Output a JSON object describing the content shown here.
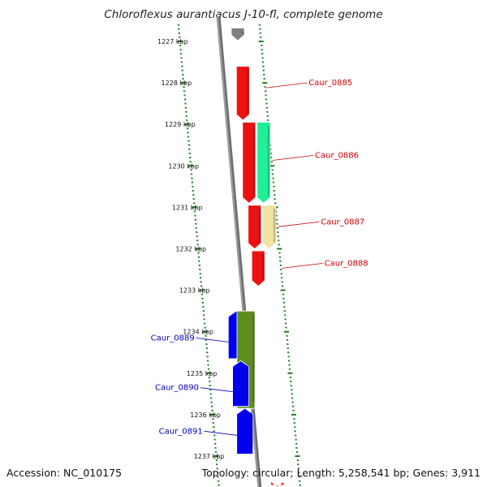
{
  "title": "Chloroflexus aurantiacus J-10-fl, complete genome",
  "footer": {
    "accession": "Accession: NC_010175",
    "topology": "Topology: circular; Length: 5,258,541 bp; Genes: 3,911"
  },
  "colors": {
    "forward_label": "#cc0000",
    "reverse_label": "#0000bb",
    "backbone": "#808080",
    "ticks": "#1e7a1e"
  },
  "scale": {
    "unit": "kbp",
    "ticks": [
      {
        "kbp": 1227,
        "label": "1227 kbp"
      },
      {
        "kbp": 1228,
        "label": "1228 kbp"
      },
      {
        "kbp": 1229,
        "label": "1229 kbp"
      },
      {
        "kbp": 1230,
        "label": "1230 kbp"
      },
      {
        "kbp": 1231,
        "label": "1231 kbp"
      },
      {
        "kbp": 1232,
        "label": "1232 kbp"
      },
      {
        "kbp": 1233,
        "label": "1233 kbp"
      },
      {
        "kbp": 1234,
        "label": "1234 kbp"
      },
      {
        "kbp": 1235,
        "label": "1235 kbp"
      },
      {
        "kbp": 1236,
        "label": "1236 kbp"
      },
      {
        "kbp": 1237,
        "label": "1237 kbp"
      }
    ]
  },
  "genes": [
    {
      "name": "",
      "strand": "+",
      "start_kbp": 1226.68,
      "end_kbp": 1226.98,
      "color": "#ee1111"
    },
    {
      "name": "",
      "strand": "+",
      "start_kbp": 1226.68,
      "end_kbp": 1226.98,
      "color": "#808080"
    },
    {
      "name": "Caur_0885",
      "strand": "+",
      "start_kbp": 1227.6,
      "end_kbp": 1228.9,
      "color": "#ee1111"
    },
    {
      "name": "Caur_0886",
      "strand": "+",
      "start_kbp": 1228.95,
      "end_kbp": 1230.9,
      "color": "#ee1111"
    },
    {
      "name": "Caur_0886",
      "strand": "+",
      "start_kbp": 1228.95,
      "end_kbp": 1230.9,
      "color": "#22ee99"
    },
    {
      "name": "Caur_0887",
      "strand": "+",
      "start_kbp": 1230.95,
      "end_kbp": 1232.0,
      "color": "#ee1111"
    },
    {
      "name": "Caur_0887",
      "strand": "+",
      "start_kbp": 1230.95,
      "end_kbp": 1232.0,
      "color": "#f0e3a0"
    },
    {
      "name": "Caur_0888",
      "strand": "+",
      "start_kbp": 1232.05,
      "end_kbp": 1232.9,
      "color": "#ee1111"
    },
    {
      "name": "Caur_0889",
      "strand": "-",
      "start_kbp": 1233.5,
      "end_kbp": 1234.65,
      "color": "#0000ee"
    },
    {
      "name": "Caur_0889",
      "strand": "-",
      "start_kbp": 1233.5,
      "end_kbp": 1235.85,
      "color": "#5e8e1e"
    },
    {
      "name": "Caur_0890",
      "strand": "-",
      "start_kbp": 1234.7,
      "end_kbp": 1235.8,
      "color": "#0000ee"
    },
    {
      "name": "Caur_0891",
      "strand": "-",
      "start_kbp": 1235.85,
      "end_kbp": 1236.95,
      "color": "#0000ee"
    },
    {
      "name": "",
      "strand": "+",
      "start_kbp": 1237.7,
      "end_kbp": 1238.0,
      "color": "#ee1111"
    }
  ],
  "gene_labels": [
    {
      "text": "Caur_0885",
      "strand": "+",
      "kbp": 1228.0
    },
    {
      "text": "Caur_0886",
      "strand": "+",
      "kbp": 1229.75
    },
    {
      "text": "Caur_0887",
      "strand": "+",
      "kbp": 1231.35
    },
    {
      "text": "Caur_0888",
      "strand": "+",
      "kbp": 1232.35
    },
    {
      "text": "Caur_0889",
      "strand": "-",
      "kbp": 1234.15
    },
    {
      "text": "Caur_0890",
      "strand": "-",
      "kbp": 1235.35
    },
    {
      "text": "Caur_0891",
      "strand": "-",
      "kbp": 1236.4
    }
  ]
}
